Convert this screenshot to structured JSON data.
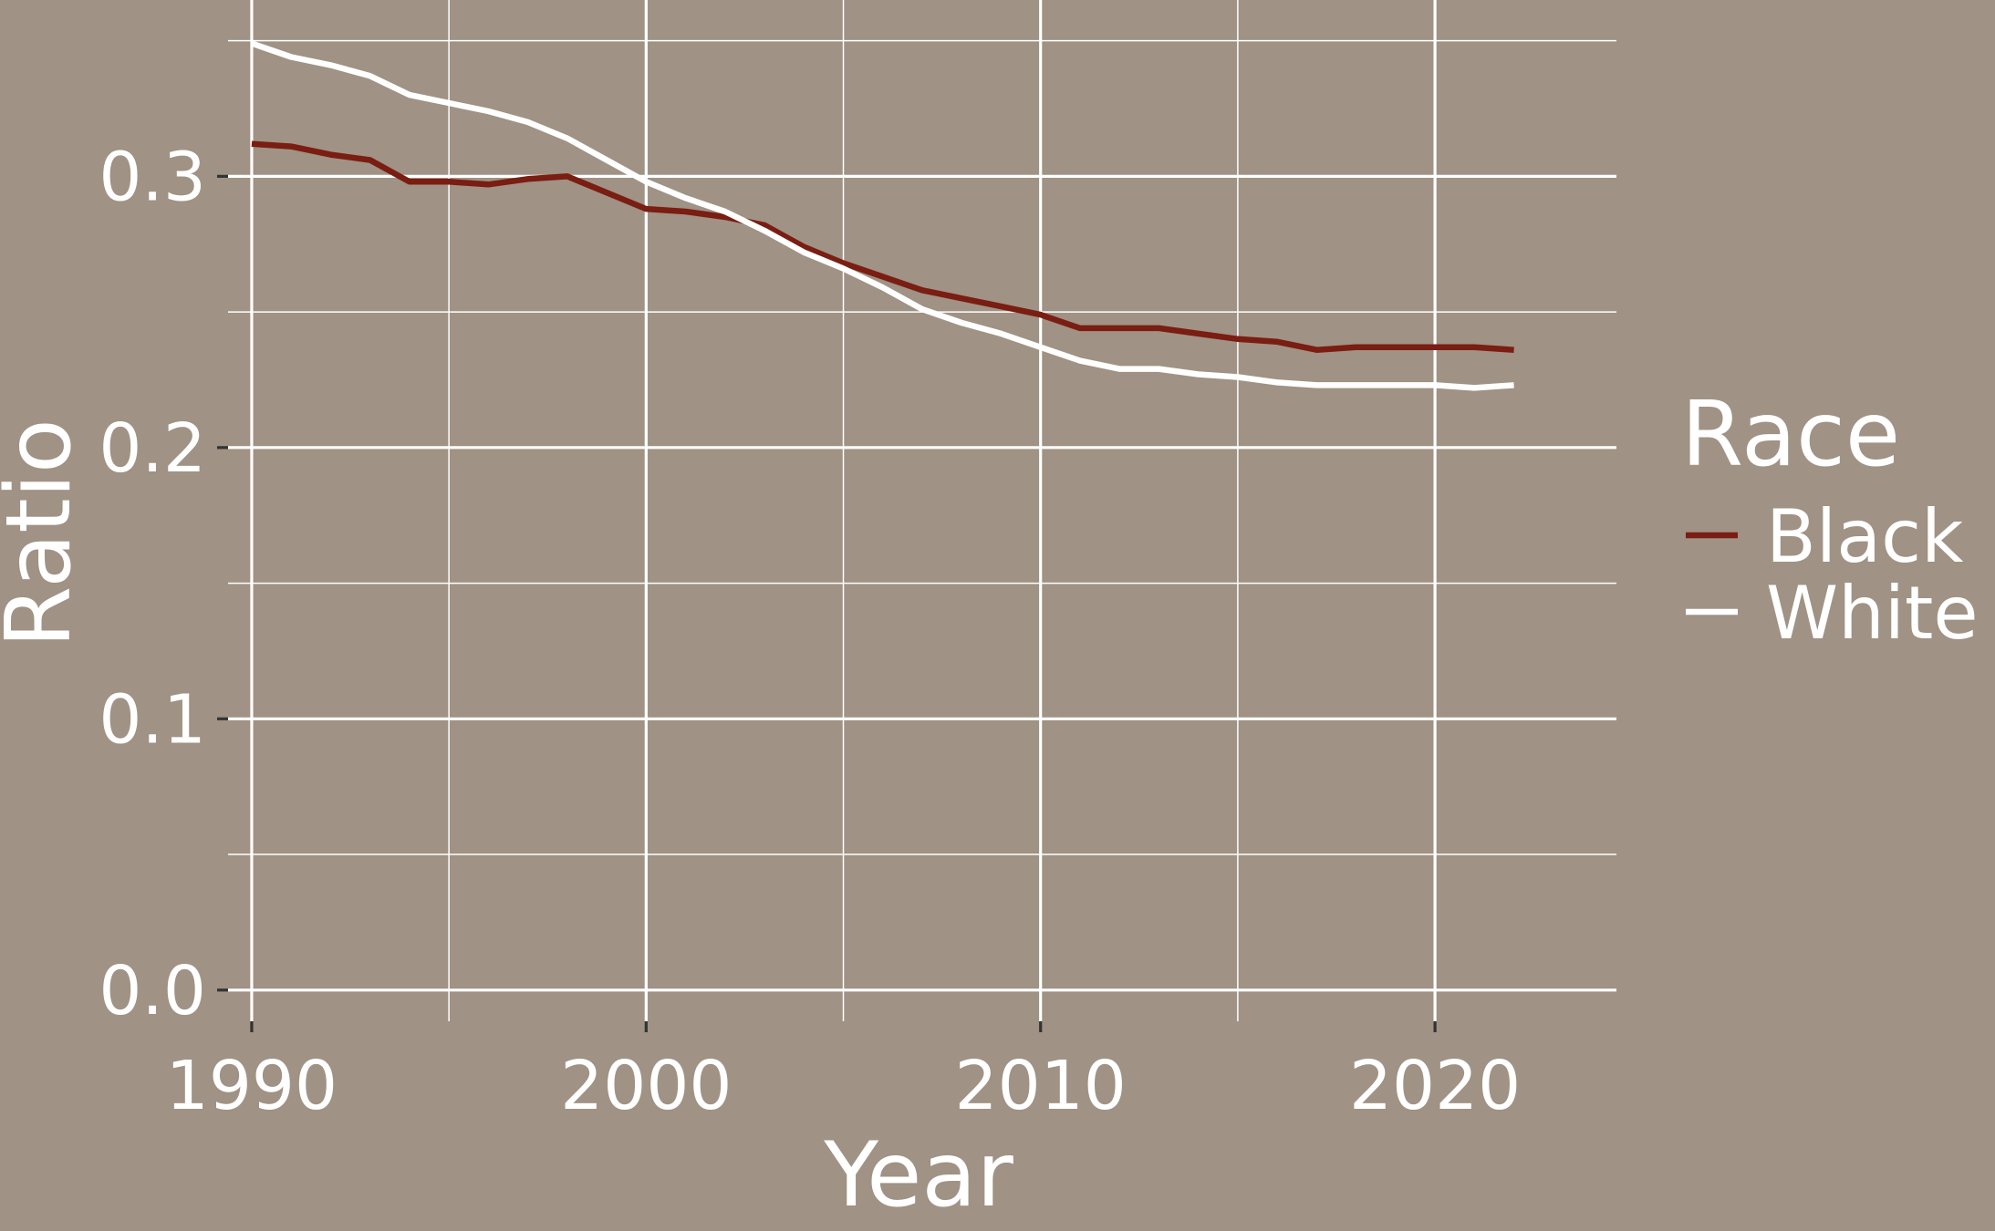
{
  "chart_data": {
    "type": "line",
    "xlabel": "Year",
    "ylabel": "Ratio",
    "xlim": [
      1989.4,
      2024.6
    ],
    "ylim": [
      -0.0115,
      0.365
    ],
    "x_ticks": [
      1990,
      2000,
      2010,
      2020
    ],
    "x_tick_labels": [
      "1990",
      "2000",
      "2010",
      "2020"
    ],
    "y_ticks": [
      0.0,
      0.1,
      0.2,
      0.3
    ],
    "y_tick_labels": [
      "0.0",
      "0.1",
      "0.2",
      "0.3"
    ],
    "grid": true,
    "legend": {
      "title": "Race",
      "position": "right"
    },
    "x": [
      1990,
      1991,
      1992,
      1993,
      1994,
      1995,
      1996,
      1997,
      1998,
      1999,
      2000,
      2001,
      2002,
      2003,
      2004,
      2005,
      2006,
      2007,
      2008,
      2009,
      2010,
      2011,
      2012,
      2013,
      2014,
      2015,
      2016,
      2017,
      2018,
      2019,
      2020,
      2021,
      2022
    ],
    "series": [
      {
        "name": "Black",
        "color": "#7a1d12",
        "values": [
          0.312,
          0.311,
          0.308,
          0.306,
          0.298,
          0.298,
          0.297,
          0.299,
          0.3,
          0.294,
          0.288,
          0.287,
          0.285,
          0.282,
          0.274,
          0.268,
          0.263,
          0.258,
          0.255,
          0.252,
          0.249,
          0.244,
          0.244,
          0.244,
          0.242,
          0.24,
          0.239,
          0.236,
          0.237,
          0.237,
          0.237,
          0.237,
          0.236
        ]
      },
      {
        "name": "White",
        "color": "#ffffff",
        "values": [
          0.349,
          0.344,
          0.341,
          0.337,
          0.33,
          0.327,
          0.324,
          0.32,
          0.314,
          0.306,
          0.298,
          0.292,
          0.287,
          0.28,
          0.272,
          0.266,
          0.259,
          0.251,
          0.246,
          0.242,
          0.237,
          0.232,
          0.229,
          0.229,
          0.227,
          0.226,
          0.224,
          0.223,
          0.223,
          0.223,
          0.223,
          0.222,
          0.223
        ]
      }
    ]
  }
}
